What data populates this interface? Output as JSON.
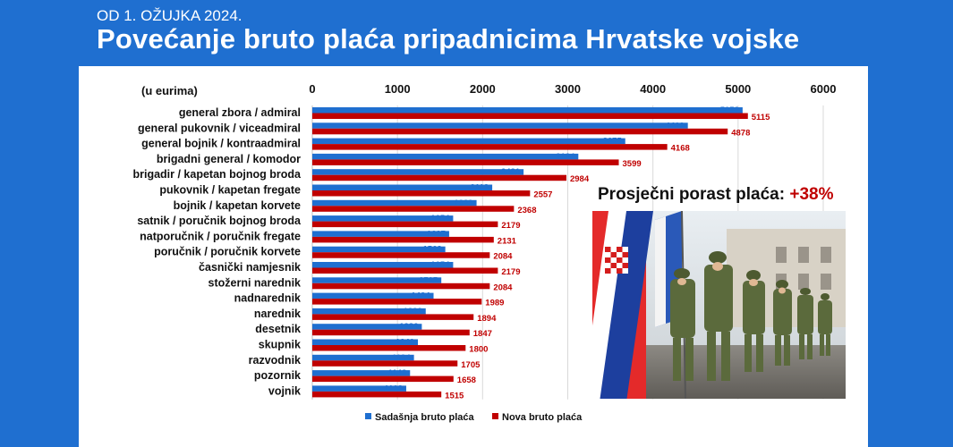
{
  "header": {
    "subtitle": "OD 1. OŽUJKA 2024.",
    "title": "Povećanje bruto plaća pripadnicima Hrvatske vojske"
  },
  "callout": {
    "label": "Prosječni porast plaća:",
    "value": "+38%"
  },
  "photo": {
    "icon": "soldiers-parade-photo"
  },
  "colors": {
    "current": "#1f6fd0",
    "new": "#c00000",
    "header": "#1f6fd0"
  },
  "chart_data": {
    "type": "bar",
    "orientation": "horizontal",
    "unit_label": "(u eurima)",
    "xlim": [
      0,
      6000
    ],
    "xticks": [
      0,
      1000,
      2000,
      3000,
      4000,
      5000,
      6000
    ],
    "axis_position": "top",
    "grid": true,
    "legend_position": "bottom",
    "categories": [
      "general zbora / admiral",
      "general pukovnik / viceadmiral",
      "general bojnik / kontraadmiral",
      "brigadni general / komodor",
      "brigadir / kapetan bojnog broda",
      "pukovnik / kapetan fregate",
      "bojnik / kapetan korvete",
      "satnik / poručnik bojnog broda",
      "natporučnik / poručnik fregate",
      "poručnik / poručnik korvete",
      "časnički namjesnik",
      "stožerni narednik",
      "nadnarednik",
      "narednik",
      "desetnik",
      "skupnik",
      "razvodnik",
      "pozornik",
      "vojnik"
    ],
    "series": [
      {
        "name": "Sadašnja bruto plaća",
        "color": "#1f6fd0",
        "values": [
          5053,
          4410,
          3675,
          3124,
          2481,
          2113,
          1929,
          1654,
          1607,
          1562,
          1654,
          1515,
          1424,
          1332,
          1286,
          1240,
          1194,
          1148,
          1103
        ]
      },
      {
        "name": "Nova bruto plaća",
        "color": "#c00000",
        "values": [
          5115,
          4878,
          4168,
          3599,
          2984,
          2557,
          2368,
          2179,
          2131,
          2084,
          2179,
          2084,
          1989,
          1894,
          1847,
          1800,
          1705,
          1658,
          1515
        ]
      }
    ]
  }
}
